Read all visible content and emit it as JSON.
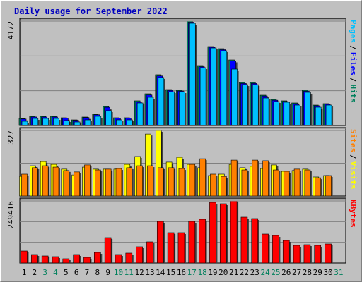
{
  "title": "Daily usage for September 2022",
  "chart_data": [
    {
      "type": "bar",
      "ylim": [
        0,
        4172
      ],
      "yticks": [
        4172
      ],
      "grid": true,
      "legend_separator": "/",
      "series": [
        {
          "name": "Hits",
          "color": "#00805c",
          "values": [
            282,
            367,
            367,
            367,
            310,
            225,
            338,
            451,
            761,
            310,
            310,
            987,
            1268,
            2030,
            1437,
            1409,
            4172,
            2396,
            3157,
            3072,
            2621,
            1719,
            1719,
            1212,
            1043,
            987,
            902,
            1409,
            817,
            874,
            null
          ]
        },
        {
          "name": "Files",
          "color": "#0000ff",
          "values": [
            260,
            340,
            340,
            340,
            290,
            210,
            320,
            430,
            730,
            290,
            290,
            950,
            1220,
            1980,
            1400,
            1380,
            4130,
            2350,
            3130,
            3030,
            2580,
            1680,
            1680,
            1180,
            1010,
            960,
            870,
            1370,
            790,
            850,
            null
          ]
        },
        {
          "name": "Pages",
          "color": "#00c0ff",
          "values": [
            169,
            282,
            282,
            282,
            197,
            141,
            225,
            367,
            592,
            225,
            225,
            902,
            1127,
            1916,
            1353,
            1353,
            4087,
            2311,
            3100,
            2987,
            2254,
            1634,
            1634,
            1099,
            958,
            930,
            817,
            1325,
            733,
            817,
            null
          ]
        }
      ]
    },
    {
      "type": "bar",
      "ylim": [
        0,
        327
      ],
      "yticks": [
        327
      ],
      "grid": true,
      "legend_separator": "/",
      "series": [
        {
          "name": "Visits",
          "color": "#ffff00",
          "values": [
            98,
            151,
            172,
            158,
            134,
            105,
            144,
            134,
            134,
            134,
            158,
            197,
            309,
            327,
            169,
            193,
            158,
            141,
            102,
            109,
            158,
            141,
            148,
            137,
            155,
            123,
            127,
            134,
            95,
            102,
            null
          ]
        },
        {
          "name": "Sites",
          "color": "#ff8000",
          "values": [
            109,
            141,
            151,
            144,
            127,
            120,
            155,
            130,
            134,
            137,
            141,
            151,
            151,
            141,
            141,
            137,
            158,
            186,
            109,
            98,
            179,
            130,
            179,
            176,
            130,
            123,
            134,
            130,
            91,
            102,
            null
          ]
        }
      ]
    },
    {
      "type": "bar",
      "ylim": [
        0,
        249416
      ],
      "yticks": [
        249416
      ],
      "grid": true,
      "legend_separator": "/",
      "categories": [
        "1",
        "2",
        "3",
        "4",
        "5",
        "6",
        "7",
        "8",
        "9",
        "10",
        "11",
        "12",
        "13",
        "14",
        "15",
        "16",
        "17",
        "18",
        "19",
        "20",
        "21",
        "22",
        "23",
        "24",
        "25",
        "26",
        "27",
        "28",
        "29",
        "30",
        "31"
      ],
      "category_colors": [
        "#000000",
        "#000000",
        "#00805c",
        "#00805c",
        "#000000",
        "#000000",
        "#000000",
        "#000000",
        "#000000",
        "#00805c",
        "#00805c",
        "#000000",
        "#000000",
        "#000000",
        "#000000",
        "#000000",
        "#00805c",
        "#00805c",
        "#000000",
        "#000000",
        "#000000",
        "#000000",
        "#000000",
        "#00805c",
        "#00805c",
        "#000000",
        "#000000",
        "#000000",
        "#000000",
        "#000000",
        "#00805c"
      ],
      "series": [
        {
          "name": "KBytes",
          "color": "#ff0000",
          "values": [
            48180,
            34010,
            28340,
            25510,
            17000,
            34010,
            22670,
            42510,
            102020,
            34010,
            39680,
            65180,
            85020,
            167200,
            121860,
            121860,
            167200,
            175710,
            243740,
            238070,
            249416,
            184210,
            178540,
            116190,
            110530,
            90690,
            70850,
            73680,
            70850,
            76520,
            null
          ]
        }
      ]
    }
  ]
}
